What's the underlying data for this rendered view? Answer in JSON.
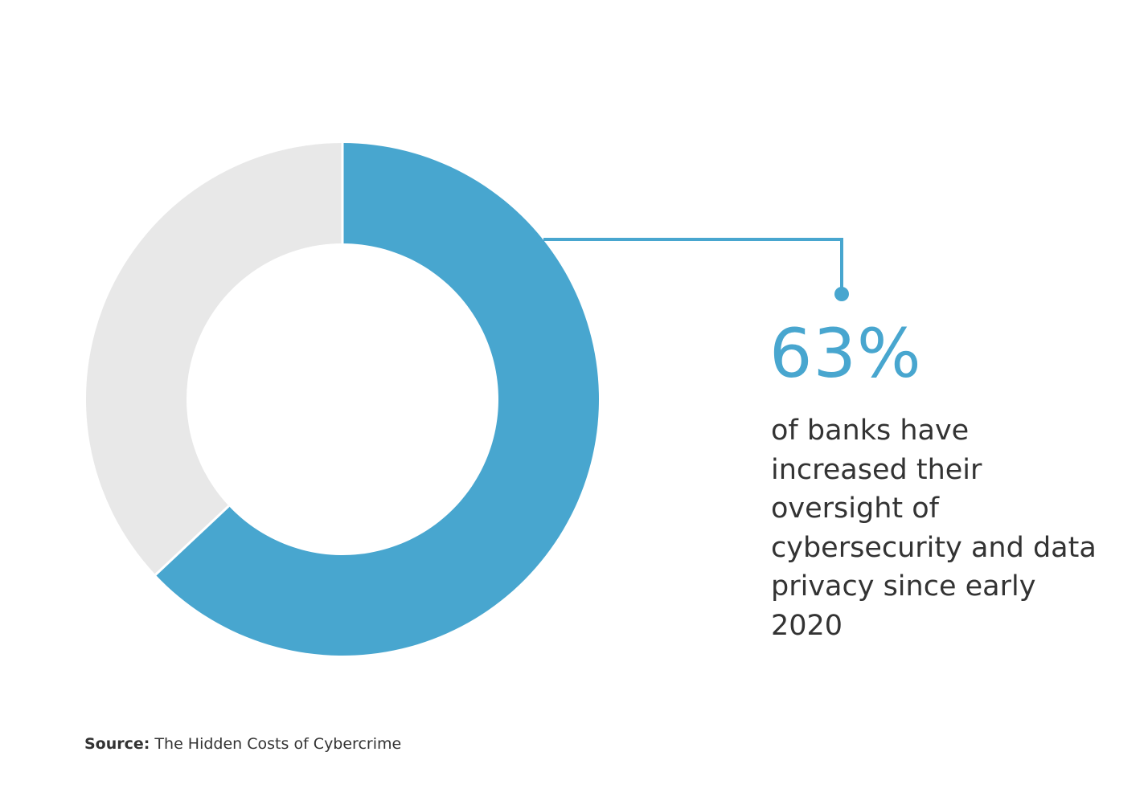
{
  "chart_data": {
    "type": "pie",
    "variant": "donut",
    "slices": [
      {
        "value": 63,
        "color": "#48a6cf",
        "highlighted": true
      },
      {
        "value": 37,
        "color": "#e8e8e8",
        "highlighted": false
      }
    ],
    "start": "top",
    "direction": "clockwise",
    "annotation": {
      "value_label": "63%",
      "description": "of banks have increased their oversight of cybersecurity and data privacy since early 2020",
      "color": "#48a6cf"
    }
  },
  "source": {
    "label": "Source:",
    "text": " The Hidden Costs of Cybercrime"
  }
}
